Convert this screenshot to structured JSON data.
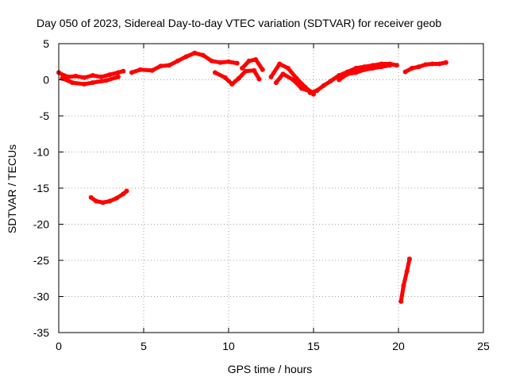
{
  "chart_data": {
    "type": "line",
    "title": "Day 050 of 2023, Sidereal Day-to-day VTEC variation (SDTVAR) for receiver geob",
    "xlabel": "GPS time / hours",
    "ylabel": "SDTVAR / TECUs",
    "xlim": [
      0,
      25
    ],
    "ylim": [
      -35,
      5
    ],
    "xticks": [
      0,
      5,
      10,
      15,
      20,
      25
    ],
    "yticks": [
      5,
      0,
      -5,
      -10,
      -15,
      -20,
      -25,
      -30,
      -35
    ],
    "grid": true,
    "color": "#ff0000",
    "series": [
      {
        "name": "seg1",
        "x": [
          0.0,
          0.3,
          0.6,
          1.0,
          1.5,
          2.0,
          2.5,
          3.0,
          3.5,
          3.8
        ],
        "y": [
          1.0,
          0.6,
          0.4,
          0.5,
          0.3,
          0.6,
          0.4,
          0.7,
          1.0,
          1.2
        ]
      },
      {
        "name": "seg2",
        "x": [
          0.2,
          0.8,
          1.5,
          2.0,
          2.8,
          3.5
        ],
        "y": [
          0.2,
          -0.4,
          -0.6,
          -0.4,
          -0.1,
          0.4
        ]
      },
      {
        "name": "seg3",
        "x": [
          4.3,
          4.8,
          5.5,
          6.0,
          6.5,
          7.0,
          7.5,
          8.0,
          8.5,
          9.0,
          9.5,
          10.0,
          10.5
        ],
        "y": [
          1.0,
          1.4,
          1.3,
          1.9,
          2.0,
          2.6,
          3.2,
          3.7,
          3.4,
          2.6,
          2.4,
          2.5,
          2.3
        ]
      },
      {
        "name": "seg4",
        "x": [
          9.2,
          9.8,
          10.2,
          10.6,
          11.0,
          11.5,
          11.8
        ],
        "y": [
          1.0,
          0.3,
          -0.6,
          0.2,
          1.2,
          1.3,
          0.1
        ]
      },
      {
        "name": "seg5",
        "x": [
          10.8,
          11.2,
          11.6,
          12.0
        ],
        "y": [
          1.6,
          2.6,
          2.8,
          1.4
        ]
      },
      {
        "name": "seg6",
        "x": [
          12.5,
          13.0,
          13.5,
          14.0,
          14.5,
          15.0
        ],
        "y": [
          0.4,
          2.2,
          1.6,
          0.2,
          -1.0,
          -2.0
        ]
      },
      {
        "name": "seg7",
        "x": [
          12.8,
          13.2,
          13.8,
          14.3,
          14.8
        ],
        "y": [
          -0.4,
          0.8,
          0.0,
          -1.2,
          -1.6
        ]
      },
      {
        "name": "seg8",
        "x": [
          14.8,
          15.2,
          15.6,
          16.0,
          16.5,
          17.0,
          17.5,
          18.0,
          18.5,
          19.0,
          19.5,
          19.9
        ],
        "y": [
          -1.8,
          -1.5,
          -0.8,
          -0.2,
          0.6,
          1.1,
          1.6,
          1.8,
          2.0,
          2.2,
          2.2,
          2.0
        ]
      },
      {
        "name": "seg9",
        "x": [
          16.5,
          17.0,
          17.5,
          18.0,
          18.5,
          19.0,
          19.5
        ],
        "y": [
          0.0,
          0.8,
          1.0,
          1.4,
          1.6,
          1.8,
          2.0
        ]
      },
      {
        "name": "seg10",
        "x": [
          20.4,
          20.8,
          21.2,
          21.6,
          22.0,
          22.4,
          22.8
        ],
        "y": [
          1.1,
          1.6,
          1.8,
          2.1,
          2.2,
          2.2,
          2.4
        ]
      },
      {
        "name": "seg11",
        "x": [
          1.9,
          2.2,
          2.6,
          3.0,
          3.4,
          3.8,
          4.0
        ],
        "y": [
          -16.3,
          -16.8,
          -17.0,
          -16.8,
          -16.4,
          -15.8,
          -15.4
        ]
      },
      {
        "name": "seg12",
        "x": [
          20.15,
          20.3,
          20.5,
          20.65
        ],
        "y": [
          -30.7,
          -28.5,
          -26.5,
          -24.8
        ]
      }
    ]
  }
}
